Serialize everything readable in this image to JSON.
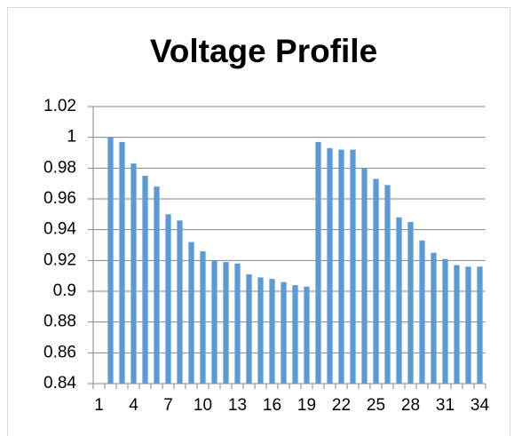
{
  "chart_data": {
    "type": "bar",
    "title": "Voltage Profile",
    "categories": [
      "1",
      null,
      null,
      "4",
      null,
      null,
      "7",
      null,
      null,
      "10",
      null,
      null,
      "13",
      null,
      null,
      "16",
      null,
      null,
      "19",
      null,
      null,
      "22",
      null,
      null,
      "25",
      null,
      null,
      "28",
      null,
      null,
      "31",
      null,
      null,
      "34"
    ],
    "values": [
      null,
      1.0,
      0.997,
      0.983,
      0.975,
      0.968,
      0.95,
      0.946,
      0.932,
      0.926,
      0.92,
      0.919,
      0.918,
      0.911,
      0.909,
      0.908,
      0.906,
      0.904,
      0.903,
      0.997,
      0.993,
      0.992,
      0.992,
      0.98,
      0.973,
      0.969,
      0.948,
      0.945,
      0.933,
      0.925,
      0.921,
      0.917,
      0.916,
      0.916
    ],
    "color": "#5b9bd5",
    "ylim": [
      0.84,
      1.02
    ],
    "yticks": [
      0.84,
      0.86,
      0.88,
      0.9,
      0.92,
      0.94,
      0.96,
      0.98,
      1,
      1.02
    ],
    "grid": true
  }
}
